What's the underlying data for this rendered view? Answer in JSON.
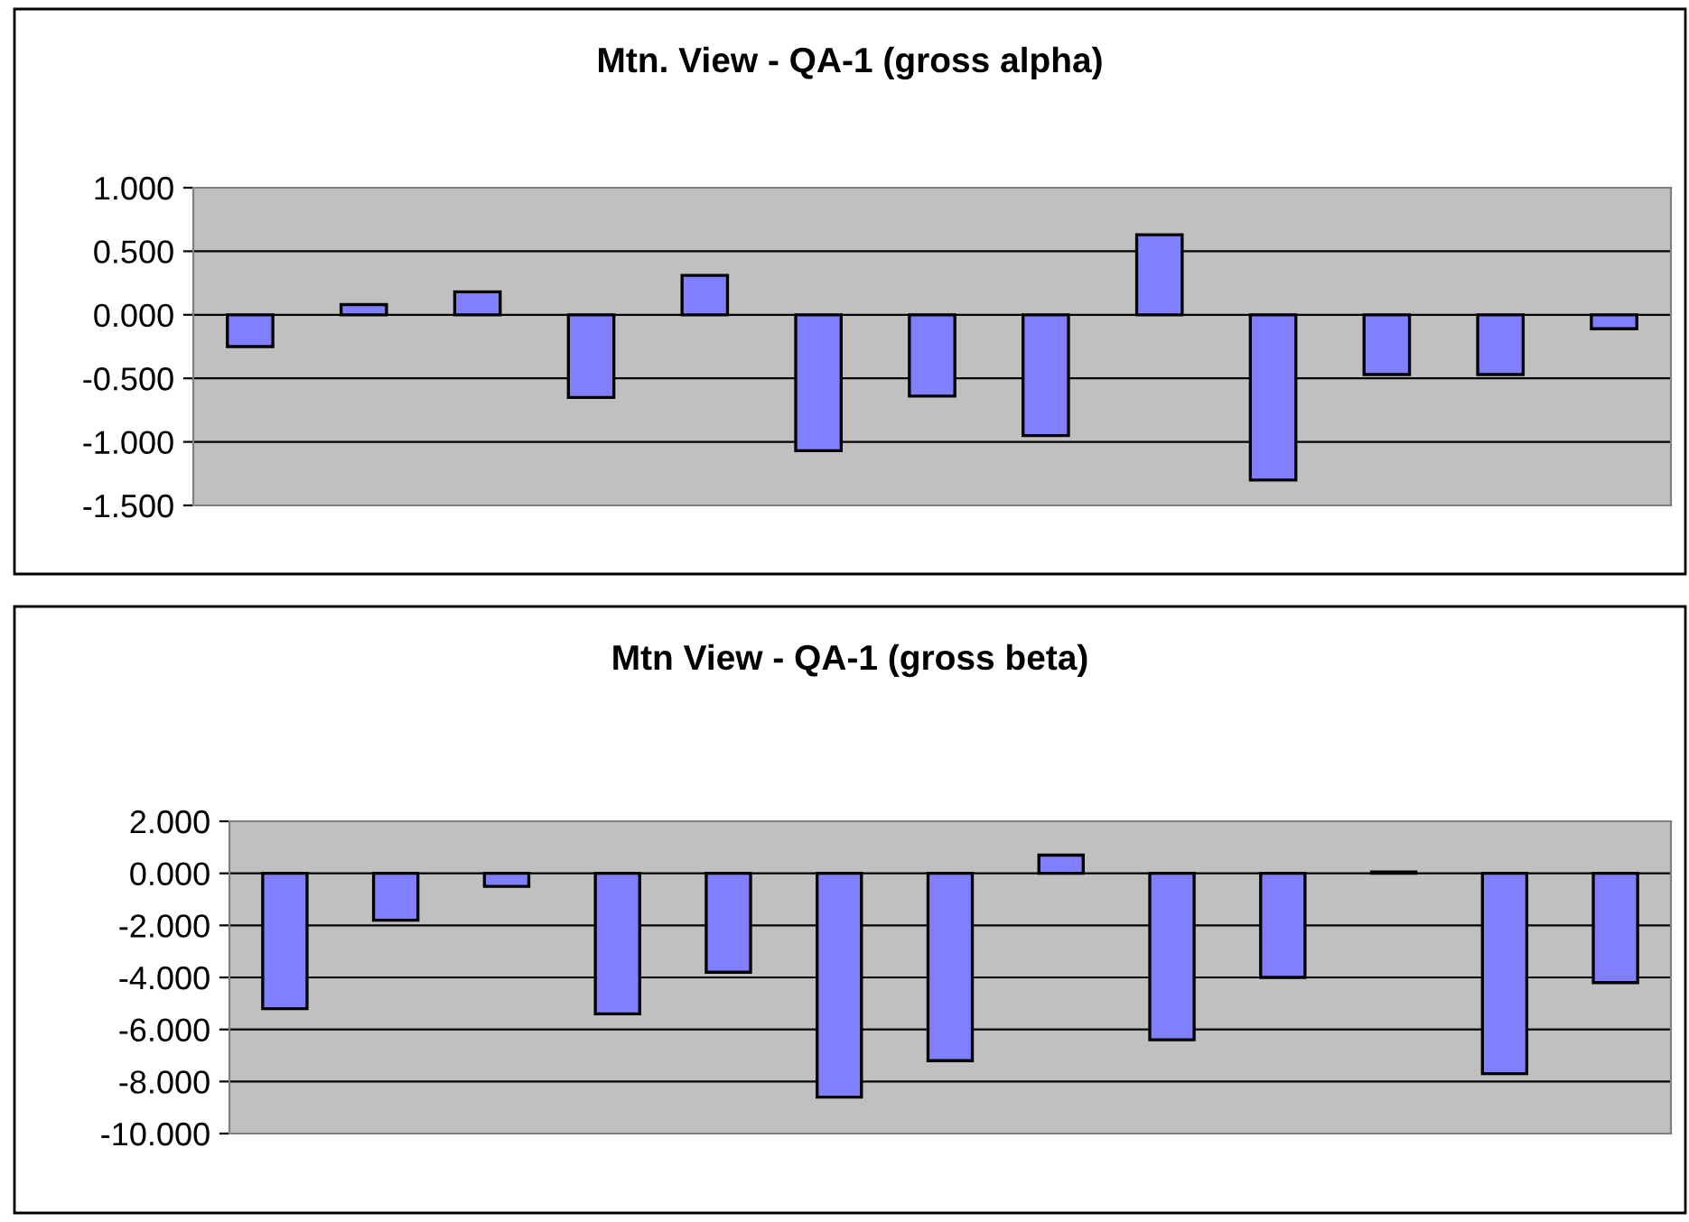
{
  "chart_data": [
    {
      "type": "bar",
      "title": "Mtn. View - QA-1 (gross alpha)",
      "categories": [
        null,
        null,
        null,
        null,
        null,
        null,
        null,
        null,
        null,
        null,
        null,
        null,
        null
      ],
      "series": [
        {
          "color": "#8080ff",
          "values": [
            -0.25,
            0.08,
            0.18,
            -0.65,
            0.31,
            -1.07,
            -0.64,
            -0.95,
            0.63,
            -1.3,
            -0.47,
            -0.47,
            -0.11
          ]
        }
      ],
      "ylim": [
        -1.5,
        1.0
      ],
      "yticks": [
        {
          "value": -1.5,
          "label": "-1.500"
        },
        {
          "value": -1.0,
          "label": "-1.000"
        },
        {
          "value": -0.5,
          "label": "-0.500"
        },
        {
          "value": 0,
          "label": "0.000"
        },
        {
          "value": 0.5,
          "label": "0.500"
        },
        {
          "value": 1.0,
          "label": "1.000"
        }
      ],
      "grid": "y",
      "legend": false
    },
    {
      "type": "bar",
      "title": "Mtn View - QA-1 (gross beta)",
      "categories": [
        null,
        null,
        null,
        null,
        null,
        null,
        null,
        null,
        null,
        null,
        null,
        null,
        null
      ],
      "series": [
        {
          "color": "#8080ff",
          "values": [
            -5.2,
            -1.8,
            -0.5,
            -5.4,
            -3.8,
            -8.6,
            -7.2,
            0.7,
            -6.4,
            -4.0,
            0.05,
            -7.7,
            -4.2
          ]
        }
      ],
      "ylim": [
        -10.0,
        2.0
      ],
      "yticks": [
        {
          "value": -10,
          "label": "-10.000"
        },
        {
          "value": -8,
          "label": "-8.000"
        },
        {
          "value": -6,
          "label": "-6.000"
        },
        {
          "value": -4,
          "label": "-4.000"
        },
        {
          "value": -2,
          "label": "-2.000"
        },
        {
          "value": 0,
          "label": "0.000"
        },
        {
          "value": 2,
          "label": "2.000"
        }
      ],
      "grid": "y",
      "legend": false
    }
  ]
}
